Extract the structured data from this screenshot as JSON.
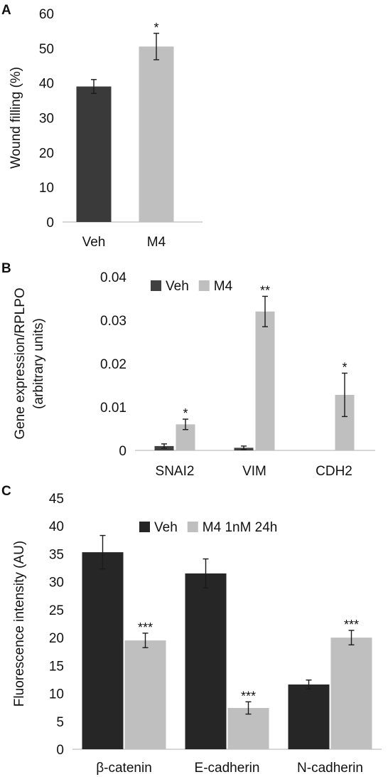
{
  "chart_data": [
    {
      "panel": "A",
      "type": "bar",
      "categories": [
        "Veh",
        "M4"
      ],
      "values": [
        39,
        50.5
      ],
      "errors": [
        2,
        3.8
      ],
      "significance": [
        "",
        "*"
      ],
      "bar_colors": [
        "#3a3a3a",
        "#bfbfbf"
      ],
      "ylabel": "Wound filling (%)",
      "ylim": [
        0,
        60
      ],
      "yticks": [
        "0",
        "10",
        "20",
        "30",
        "40",
        "50",
        "60"
      ],
      "ytick_values": [
        0,
        10,
        20,
        30,
        40,
        50,
        60
      ],
      "grid": false
    },
    {
      "panel": "B",
      "type": "bar",
      "categories": [
        "SNAI2",
        "VIM",
        "CDH2"
      ],
      "series": [
        {
          "name": "Veh",
          "values": [
            0.001,
            0.0006,
            0
          ],
          "errors": [
            0.0005,
            0.0004,
            0
          ],
          "color": "#404040",
          "significance": [
            "",
            "",
            ""
          ]
        },
        {
          "name": "M4",
          "values": [
            0.006,
            0.032,
            0.0128
          ],
          "errors": [
            0.0012,
            0.0035,
            0.005
          ],
          "color": "#bfbfbf",
          "significance": [
            "*",
            "**",
            "*"
          ]
        }
      ],
      "ylabel": "Gene expression/RPLPO\n(arbitrary units)",
      "ylabel_lines": [
        "Gene expression/RPLPO",
        "(arbitrary units)"
      ],
      "ylim": [
        0,
        0.04
      ],
      "yticks": [
        "0",
        "0.01",
        "0.02",
        "0.03",
        "0.04"
      ],
      "ytick_values": [
        0,
        0.01,
        0.02,
        0.03,
        0.04
      ],
      "grid": false,
      "legend_position": "top-left"
    },
    {
      "panel": "C",
      "type": "bar",
      "categories": [
        "β-catenin",
        "E-cadherin",
        "N-cadherin"
      ],
      "series": [
        {
          "name": "Veh",
          "values": [
            35.3,
            31.5,
            11.6
          ],
          "errors": [
            3,
            2.6,
            0.8
          ],
          "color": "#262626",
          "significance": [
            "",
            "",
            ""
          ]
        },
        {
          "name": "M4 1nM 24h",
          "values": [
            19.5,
            7.4,
            20
          ],
          "errors": [
            1.3,
            1.1,
            1.3
          ],
          "color": "#bfbfbf",
          "significance": [
            "***",
            "***",
            "***"
          ]
        }
      ],
      "ylabel": "Fluorescence intensity (AU)",
      "ylim": [
        0,
        45
      ],
      "yticks": [
        "0",
        "5",
        "10",
        "15",
        "20",
        "25",
        "30",
        "35",
        "40",
        "45"
      ],
      "ytick_values": [
        0,
        5,
        10,
        15,
        20,
        25,
        30,
        35,
        40,
        45
      ],
      "grid": false,
      "legend_position": "top-center"
    }
  ],
  "panel_labels": [
    "A",
    "B",
    "C"
  ]
}
